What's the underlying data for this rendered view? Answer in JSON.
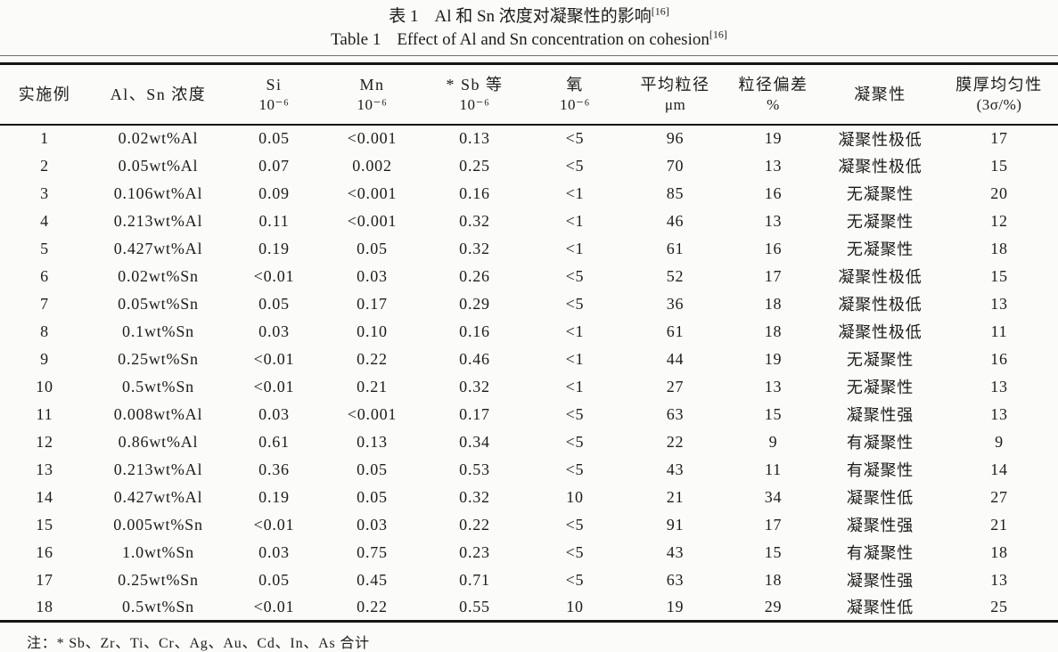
{
  "colors": {
    "paper": "#fbfbf9",
    "ink": "#1c1c1c",
    "rule": "#141414"
  },
  "titles": {
    "zh": {
      "label": "表 1",
      "text": "Al 和 Sn 浓度对凝聚性的影响",
      "ref": "[16]"
    },
    "en": {
      "label": "Table 1",
      "text": "Effect of Al and Sn concentration on cohesion",
      "ref": "[16]"
    }
  },
  "footnote": "注：* Sb、Zr、Ti、Cr、Ag、Au、Cd、In、As 合计",
  "table": {
    "columns": [
      {
        "line1": "实施例",
        "line2": ""
      },
      {
        "line1": "Al、Sn 浓度",
        "line2": ""
      },
      {
        "line1": "Si",
        "line2": "10⁻⁶"
      },
      {
        "line1": "Mn",
        "line2": "10⁻⁶"
      },
      {
        "line1": "* Sb 等",
        "line2": "10⁻⁶"
      },
      {
        "line1": "氧",
        "line2": "10⁻⁶"
      },
      {
        "line1": "平均粒径",
        "line2": "μm"
      },
      {
        "line1": "粒径偏差",
        "line2": "%"
      },
      {
        "line1": "凝聚性",
        "line2": ""
      },
      {
        "line1": "膜厚均匀性",
        "line2": "(3σ/%)"
      }
    ],
    "rows": [
      [
        "1",
        "0.02wt%Al",
        "0.05",
        "<0.001",
        "0.13",
        "<5",
        "96",
        "19",
        "凝聚性极低",
        "17"
      ],
      [
        "2",
        "0.05wt%Al",
        "0.07",
        "0.002",
        "0.25",
        "<5",
        "70",
        "13",
        "凝聚性极低",
        "15"
      ],
      [
        "3",
        "0.106wt%Al",
        "0.09",
        "<0.001",
        "0.16",
        "<1",
        "85",
        "16",
        "无凝聚性",
        "20"
      ],
      [
        "4",
        "0.213wt%Al",
        "0.11",
        "<0.001",
        "0.32",
        "<1",
        "46",
        "13",
        "无凝聚性",
        "12"
      ],
      [
        "5",
        "0.427wt%Al",
        "0.19",
        "0.05",
        "0.32",
        "<1",
        "61",
        "16",
        "无凝聚性",
        "18"
      ],
      [
        "6",
        "0.02wt%Sn",
        "<0.01",
        "0.03",
        "0.26",
        "<5",
        "52",
        "17",
        "凝聚性极低",
        "15"
      ],
      [
        "7",
        "0.05wt%Sn",
        "0.05",
        "0.17",
        "0.29",
        "<5",
        "36",
        "18",
        "凝聚性极低",
        "13"
      ],
      [
        "8",
        "0.1wt%Sn",
        "0.03",
        "0.10",
        "0.16",
        "<1",
        "61",
        "18",
        "凝聚性极低",
        "11"
      ],
      [
        "9",
        "0.25wt%Sn",
        "<0.01",
        "0.22",
        "0.46",
        "<1",
        "44",
        "19",
        "无凝聚性",
        "16"
      ],
      [
        "10",
        "0.5wt%Sn",
        "<0.01",
        "0.21",
        "0.32",
        "<1",
        "27",
        "13",
        "无凝聚性",
        "13"
      ],
      [
        "11",
        "0.008wt%Al",
        "0.03",
        "<0.001",
        "0.17",
        "<5",
        "63",
        "15",
        "凝聚性强",
        "13"
      ],
      [
        "12",
        "0.86wt%Al",
        "0.61",
        "0.13",
        "0.34",
        "<5",
        "22",
        "9",
        "有凝聚性",
        "9"
      ],
      [
        "13",
        "0.213wt%Al",
        "0.36",
        "0.05",
        "0.53",
        "<5",
        "43",
        "11",
        "有凝聚性",
        "14"
      ],
      [
        "14",
        "0.427wt%Al",
        "0.19",
        "0.05",
        "0.32",
        "10",
        "21",
        "34",
        "凝聚性低",
        "27"
      ],
      [
        "15",
        "0.005wt%Sn",
        "<0.01",
        "0.03",
        "0.22",
        "<5",
        "91",
        "17",
        "凝聚性强",
        "21"
      ],
      [
        "16",
        "1.0wt%Sn",
        "0.03",
        "0.75",
        "0.23",
        "<5",
        "43",
        "15",
        "有凝聚性",
        "18"
      ],
      [
        "17",
        "0.25wt%Sn",
        "0.05",
        "0.45",
        "0.71",
        "<5",
        "63",
        "18",
        "凝聚性强",
        "13"
      ],
      [
        "18",
        "0.5wt%Sn",
        "<0.01",
        "0.22",
        "0.55",
        "10",
        "19",
        "29",
        "凝聚性低",
        "25"
      ]
    ]
  }
}
